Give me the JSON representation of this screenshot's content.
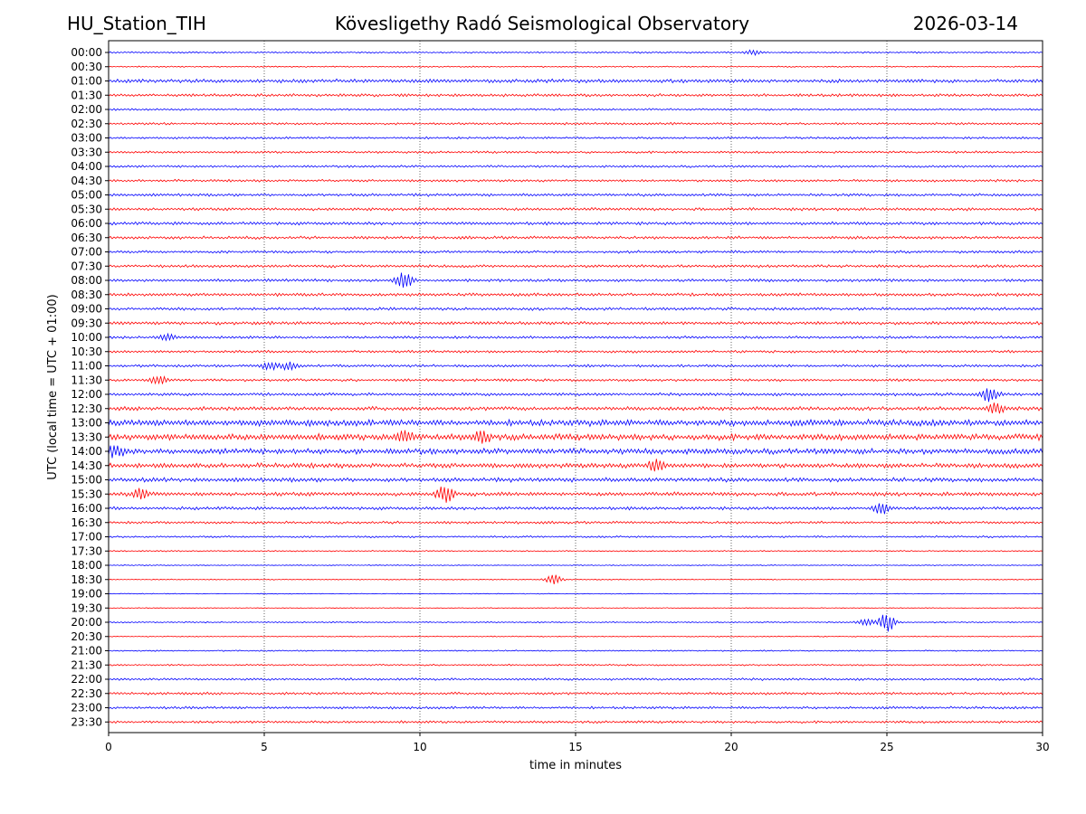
{
  "header": {
    "station": "HU_Station_TIH",
    "observatory": "Kövesligethy Radó Seismological Observatory",
    "date": "2026-03-14"
  },
  "chart_data": {
    "type": "line",
    "title": "Kövesligethy Radó Seismological Observatory",
    "xlabel": "time in minutes",
    "ylabel": "UTC (local time = UTC + 01:00)",
    "xlim": [
      0,
      30
    ],
    "x_ticks": [
      "0",
      "5",
      "10",
      "15",
      "20",
      "25",
      "30"
    ],
    "x_gridlines": [
      5,
      10,
      15,
      20,
      25
    ],
    "series_colors": [
      "#0000ff",
      "#ff0000"
    ],
    "trace_labels": [
      "00:00",
      "00:30",
      "01:00",
      "01:30",
      "02:00",
      "02:30",
      "03:00",
      "03:30",
      "04:00",
      "04:30",
      "05:00",
      "05:30",
      "06:00",
      "06:30",
      "07:00",
      "07:30",
      "08:00",
      "08:30",
      "09:00",
      "09:30",
      "10:00",
      "10:30",
      "11:00",
      "11:30",
      "12:00",
      "12:30",
      "13:00",
      "13:30",
      "14:00",
      "14:30",
      "15:00",
      "15:30",
      "16:00",
      "16:30",
      "17:00",
      "17:30",
      "18:00",
      "18:30",
      "19:00",
      "19:30",
      "20:00",
      "20:30",
      "21:00",
      "21:30",
      "22:00",
      "22:30",
      "23:00",
      "23:30"
    ],
    "noise_level": [
      1.0,
      0.8,
      2.2,
      1.8,
      1.2,
      1.4,
      1.4,
      1.4,
      1.4,
      1.5,
      1.7,
      1.8,
      1.9,
      1.8,
      1.6,
      1.8,
      1.8,
      1.9,
      1.8,
      2.0,
      1.6,
      1.6,
      1.6,
      1.6,
      1.8,
      2.4,
      4.0,
      3.8,
      3.5,
      3.0,
      2.6,
      2.4,
      1.9,
      1.6,
      1.2,
      0.8,
      0.6,
      0.6,
      0.5,
      0.5,
      0.8,
      0.6,
      0.8,
      1.0,
      1.4,
      1.6,
      1.6,
      1.5
    ],
    "events": [
      {
        "trace": "00:00",
        "minute": 20.7,
        "amplitude": 3
      },
      {
        "trace": "08:00",
        "minute": 9.5,
        "amplitude": 10
      },
      {
        "trace": "10:00",
        "minute": 1.9,
        "amplitude": 4
      },
      {
        "trace": "11:00",
        "minute": 5.2,
        "amplitude": 5
      },
      {
        "trace": "11:00",
        "minute": 5.8,
        "amplitude": 4
      },
      {
        "trace": "11:30",
        "minute": 1.6,
        "amplitude": 5
      },
      {
        "trace": "12:00",
        "minute": 28.3,
        "amplitude": 9
      },
      {
        "trace": "12:30",
        "minute": 28.5,
        "amplitude": 6
      },
      {
        "trace": "13:30",
        "minute": 9.5,
        "amplitude": 6
      },
      {
        "trace": "13:30",
        "minute": 12.0,
        "amplitude": 6
      },
      {
        "trace": "14:00",
        "minute": 0.2,
        "amplitude": 6
      },
      {
        "trace": "14:30",
        "minute": 17.6,
        "amplitude": 7
      },
      {
        "trace": "15:30",
        "minute": 1.0,
        "amplitude": 6
      },
      {
        "trace": "15:30",
        "minute": 10.8,
        "amplitude": 9
      },
      {
        "trace": "16:00",
        "minute": 24.8,
        "amplitude": 6
      },
      {
        "trace": "18:30",
        "minute": 14.3,
        "amplitude": 5
      },
      {
        "trace": "20:00",
        "minute": 25.0,
        "amplitude": 11
      },
      {
        "trace": "20:00",
        "minute": 24.3,
        "amplitude": 4
      }
    ]
  }
}
